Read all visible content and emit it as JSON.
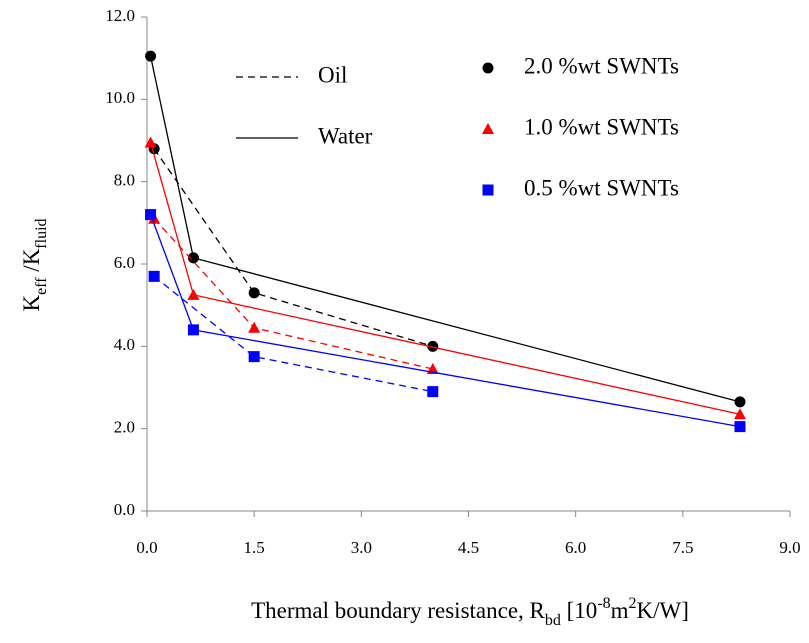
{
  "chart_data": {
    "type": "line",
    "xlabel": {
      "parts": [
        "Thermal boundary resistance, R",
        "bd",
        " [10",
        "-8",
        "m",
        "2",
        "K/W]"
      ],
      "styles": [
        "normal",
        "sub",
        "normal",
        "sup",
        "normal",
        "sup",
        "normal"
      ]
    },
    "ylabel": {
      "parts": [
        "K",
        "eff",
        " /K",
        "fluid"
      ],
      "styles": [
        "normal",
        "sub",
        "normal",
        "sub"
      ]
    },
    "xlim": [
      0,
      9
    ],
    "ylim": [
      0,
      12
    ],
    "xticks": [
      {
        "value": 0,
        "label": "0.0"
      },
      {
        "value": 1.5,
        "label": "1.5"
      },
      {
        "value": 3,
        "label": "3.0"
      },
      {
        "value": 4.5,
        "label": "4.5"
      },
      {
        "value": 6,
        "label": "6.0"
      },
      {
        "value": 7.5,
        "label": "7.5"
      },
      {
        "value": 9,
        "label": "9.0"
      }
    ],
    "yticks": [
      {
        "value": 0,
        "label": "0.0"
      },
      {
        "value": 2,
        "label": "2.0"
      },
      {
        "value": 4,
        "label": "4.0"
      },
      {
        "value": 6,
        "label": "6.0"
      },
      {
        "value": 8,
        "label": "8.0"
      },
      {
        "value": 10,
        "label": "10.0"
      },
      {
        "value": 12,
        "label": "12.0"
      }
    ],
    "line_legend": {
      "oil": "Oil",
      "water": "Water"
    },
    "series": [
      {
        "name": "2.0 %wt SWNTs",
        "color": "#000000",
        "marker": "circle",
        "water": {
          "x": [
            0.05,
            0.65,
            8.3
          ],
          "values": [
            11.05,
            6.15,
            2.65
          ]
        },
        "oil": {
          "x": [
            0.1,
            1.5,
            4.0
          ],
          "values": [
            8.8,
            5.3,
            4.0
          ]
        }
      },
      {
        "name": "1.0 %wt SWNTs",
        "color": "#ff0000",
        "marker": "triangle",
        "water": {
          "x": [
            0.05,
            0.65,
            8.3
          ],
          "values": [
            8.95,
            5.25,
            2.35
          ]
        },
        "oil": {
          "x": [
            0.1,
            1.5,
            4.0
          ],
          "values": [
            7.1,
            4.45,
            3.45
          ]
        }
      },
      {
        "name": "0.5 %wt SWNTs",
        "color": "#0000ff",
        "marker": "square",
        "water": {
          "x": [
            0.05,
            0.65,
            8.3
          ],
          "values": [
            7.2,
            4.4,
            2.05
          ]
        },
        "oil": {
          "x": [
            0.1,
            1.5,
            4.0
          ],
          "values": [
            5.7,
            3.75,
            2.9
          ]
        }
      }
    ]
  }
}
